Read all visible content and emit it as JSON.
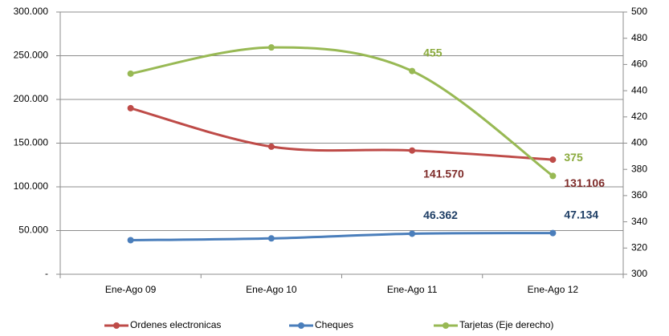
{
  "chart_data": {
    "type": "line",
    "categories": [
      "Ene-Ago 09",
      "Ene-Ago 10",
      "Ene-Ago 11",
      "Ene-Ago 12"
    ],
    "ylim": [
      0,
      300000
    ],
    "yticks": [
      {
        "value": 0,
        "label": "-"
      },
      {
        "value": 50000,
        "label": "50.000"
      },
      {
        "value": 100000,
        "label": "100.000"
      },
      {
        "value": 150000,
        "label": "150.000"
      },
      {
        "value": 200000,
        "label": "200.000"
      },
      {
        "value": 250000,
        "label": "250.000"
      },
      {
        "value": 300000,
        "label": "300.000"
      }
    ],
    "y2lim": [
      300,
      500
    ],
    "y2ticks": [
      300,
      320,
      340,
      360,
      380,
      400,
      420,
      440,
      460,
      480,
      500
    ],
    "grid": true,
    "legend": "bottom",
    "series": [
      {
        "name": "Ordenes electronicas",
        "color": "#be4b48",
        "label_color": "#7f2c2a",
        "values": [
          190000,
          146000,
          141570,
          131106
        ],
        "value_labels": [
          null,
          null,
          "141.570",
          "131.106"
        ]
      },
      {
        "name": "Cheques",
        "color": "#4a7ebb",
        "label_color": "#1f3f66",
        "values": [
          39000,
          41000,
          46362,
          47134
        ],
        "value_labels": [
          null,
          null,
          "46.362",
          "47.134"
        ]
      },
      {
        "name": "Tarjetas (Eje derecho)",
        "color": "#98b954",
        "label_color": "#8aaa3c",
        "axis": "y2",
        "values": [
          453,
          473,
          455,
          375
        ],
        "value_labels": [
          null,
          null,
          "455",
          "375"
        ]
      }
    ]
  }
}
